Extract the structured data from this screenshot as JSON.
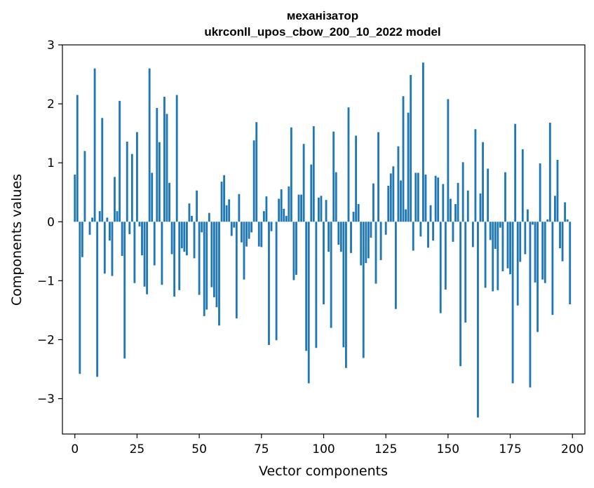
{
  "chart_data": {
    "type": "bar",
    "title": [
      "механізатор",
      "ukrconll_upos_cbow_200_10_2022 model"
    ],
    "xlabel": "Vector components",
    "ylabel": "Components values",
    "xlim": [
      -5,
      205
    ],
    "ylim": [
      -3.6,
      3.0
    ],
    "xticks": [
      0,
      25,
      50,
      75,
      100,
      125,
      150,
      175,
      200
    ],
    "xtick_labels": [
      "0",
      "25",
      "50",
      "75",
      "100",
      "125",
      "150",
      "175",
      "200"
    ],
    "yticks": [
      -3,
      -2,
      -1,
      0,
      1,
      2,
      3
    ],
    "ytick_labels": [
      "−3",
      "−2",
      "−1",
      "0",
      "1",
      "2",
      "3"
    ],
    "bar_color": "#1f77b4",
    "grid": false,
    "values": [
      0.8,
      2.15,
      -2.58,
      -0.6,
      1.2,
      0.0,
      -0.22,
      0.07,
      2.6,
      -2.63,
      0.18,
      1.76,
      -0.88,
      0.07,
      -0.32,
      -0.92,
      0.76,
      0.18,
      2.05,
      -0.58,
      -2.32,
      1.36,
      -0.21,
      1.15,
      -1.04,
      1.52,
      -0.08,
      -0.57,
      -1.1,
      -1.23,
      2.6,
      0.83,
      -0.74,
      1.93,
      1.35,
      -1.07,
      2.12,
      1.83,
      0.66,
      -0.55,
      -1.27,
      2.15,
      -1.16,
      -0.45,
      -0.51,
      -0.57,
      0.31,
      0.1,
      -0.62,
      0.53,
      -1.24,
      -0.18,
      -1.6,
      -1.49,
      0.15,
      -1.11,
      -1.28,
      -1.45,
      -1.76,
      0.68,
      0.79,
      0.28,
      0.38,
      -0.24,
      -0.1,
      -1.64,
      0.47,
      -0.35,
      -0.98,
      -0.42,
      -0.29,
      -0.18,
      1.38,
      1.69,
      -0.42,
      -0.43,
      0.18,
      0.43,
      -2.09,
      -0.16,
      0.0,
      -2.01,
      0.39,
      0.55,
      0.22,
      0.1,
      0.6,
      1.6,
      -0.99,
      -0.9,
      0.46,
      0.46,
      1.32,
      -2.19,
      -2.74,
      0.97,
      1.62,
      -2.14,
      0.41,
      0.44,
      -1.4,
      0.37,
      -0.51,
      -1.8,
      1.53,
      0.84,
      -0.39,
      -0.51,
      -2.13,
      -2.48,
      1.94,
      -0.53,
      0.17,
      1.46,
      0.3,
      -0.74,
      -2.31,
      -0.7,
      -0.62,
      -0.27,
      0.65,
      -1.05,
      1.52,
      -0.65,
      0.0,
      -0.22,
      0.61,
      0.82,
      0.94,
      -1.48,
      1.28,
      0.7,
      2.13,
      0.21,
      1.85,
      2.49,
      -0.49,
      0.83,
      0.83,
      -0.25,
      2.7,
      0.8,
      -0.44,
      0.28,
      -0.32,
      0.78,
      0.75,
      -1.55,
      0.64,
      -1.15,
      2.08,
      0.39,
      -0.34,
      0.3,
      0.66,
      -2.45,
      1.01,
      -1.71,
      0.53,
      0.0,
      -0.43,
      1.57,
      -3.32,
      0.48,
      1.35,
      -1.12,
      0.9,
      -0.31,
      -1.18,
      -0.46,
      -1.16,
      -0.1,
      -0.84,
      0.84,
      -0.79,
      -0.89,
      -2.74,
      1.66,
      -1.42,
      -0.68,
      1.23,
      -0.55,
      0.21,
      -2.81,
      -0.05,
      -1.03,
      -1.87,
      0.99,
      -0.98,
      -1.04,
      0.04,
      1.68,
      -1.58,
      0.44,
      1.05,
      -0.45,
      -0.67,
      0.33,
      0.04,
      -1.4
    ]
  }
}
